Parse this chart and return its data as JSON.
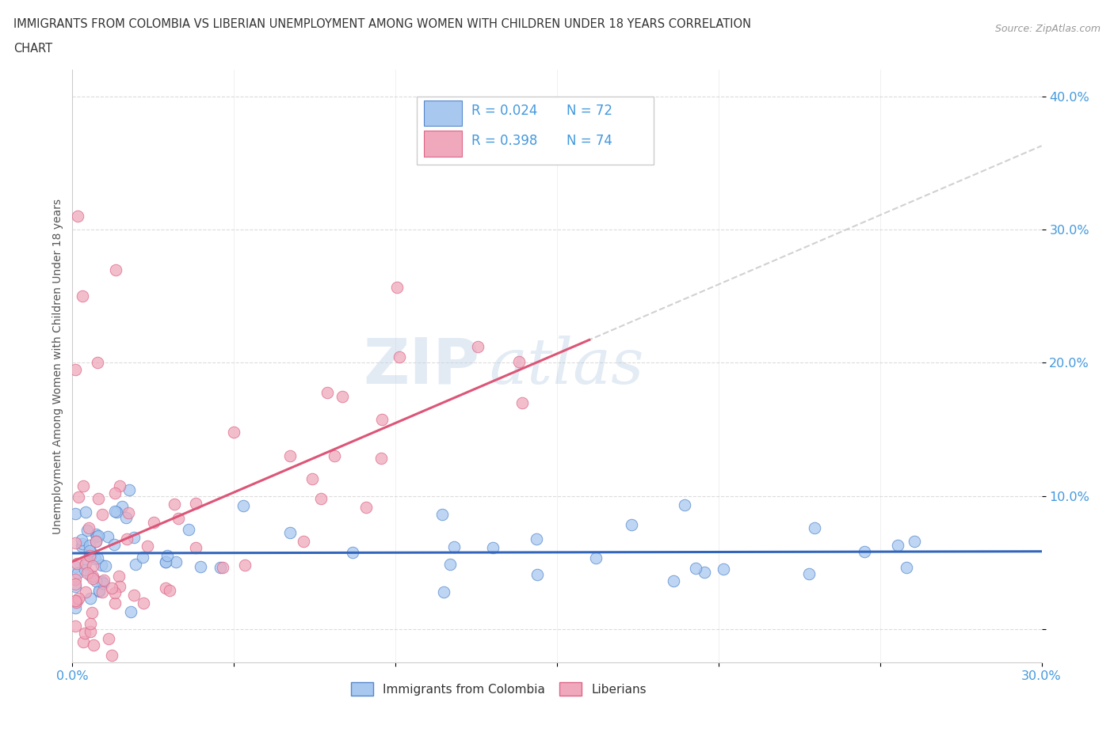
{
  "title_line1": "IMMIGRANTS FROM COLOMBIA VS LIBERIAN UNEMPLOYMENT AMONG WOMEN WITH CHILDREN UNDER 18 YEARS CORRELATION",
  "title_line2": "CHART",
  "source_text": "Source: ZipAtlas.com",
  "ylabel": "Unemployment Among Women with Children Under 18 years",
  "xlim": [
    0.0,
    0.3
  ],
  "ylim": [
    -0.025,
    0.42
  ],
  "ytick_vals": [
    0.0,
    0.1,
    0.2,
    0.3,
    0.4
  ],
  "ytick_labels": [
    "",
    "10.0%",
    "20.0%",
    "30.0%",
    "40.0%"
  ],
  "xtick_vals": [
    0.0,
    0.05,
    0.1,
    0.15,
    0.2,
    0.25,
    0.3
  ],
  "xtick_labels": [
    "0.0%",
    "",
    "",
    "",
    "",
    "",
    "30.0%"
  ],
  "colombia_color": "#a8c8f0",
  "liberian_color": "#f0a8bc",
  "colombia_edge": "#5588cc",
  "liberian_edge": "#dd6688",
  "trend_colombia_color": "#3366bb",
  "trend_liberian_color": "#dd5577",
  "R_colombia": 0.024,
  "N_colombia": 72,
  "R_liberian": 0.398,
  "N_liberian": 74,
  "watermark": "ZIPatlas",
  "background_color": "#ffffff",
  "grid_color": "#cccccc",
  "tick_color": "#4499dd",
  "title_color": "#333333",
  "source_color": "#999999"
}
